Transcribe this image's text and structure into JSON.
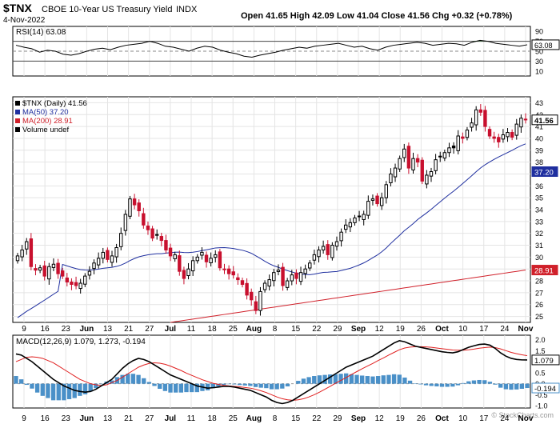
{
  "header": {
    "symbol": "$TNX",
    "name": "CBOE 10-Year US Treasury Yield",
    "exchange": "INDX",
    "date": "4-Nov-2022",
    "ohlc": "Open 41.65  High 42.09  Low 41.04  Close 41.56  Chg +0.32 (+0.78%)",
    "quote": {
      "open": "41.65",
      "high": "42.09",
      "low": "41.04",
      "close": "41.56",
      "chg": "+0.32 (+0.78%)"
    },
    "copyright": "© StockCharts.com"
  },
  "colors": {
    "up": "#ffffff",
    "down": "#000000",
    "red_candle": "#c8102e",
    "ma50": "#1f2f9f",
    "ma200": "#d0202a",
    "rsi": "#000000",
    "rsi_fill": "#3c7a3c",
    "macd": "#000000",
    "signal": "#e02020",
    "histogram": "#4a90c8",
    "price_tag": "#1f2f9f",
    "ma200_tag": "#d0202a"
  },
  "chart_data": [
    {
      "type": "line",
      "panel": "rsi",
      "title": "RSI(14) 63.08",
      "yticks": [
        90,
        70,
        50,
        30,
        10
      ],
      "ylim": [
        0,
        100
      ],
      "levels": [
        70,
        50,
        30
      ],
      "last_value": "63.08",
      "values": [
        62,
        58,
        55,
        48,
        52,
        50,
        44,
        42,
        45,
        50,
        54,
        56,
        53,
        58,
        62,
        64,
        66,
        70,
        66,
        60,
        58,
        54,
        50,
        56,
        60,
        58,
        52,
        48,
        45,
        40,
        38,
        42,
        45,
        48,
        52,
        55,
        58,
        56,
        60,
        62,
        64,
        66,
        62,
        58,
        60,
        55,
        52,
        58,
        62,
        64,
        66,
        68,
        66,
        62,
        64,
        66,
        65,
        62,
        68,
        72,
        70,
        66,
        64,
        62,
        60,
        63
      ]
    },
    {
      "type": "candlestick",
      "panel": "price",
      "title": "$TNX (Daily) 41.56",
      "legend": [
        "$TNX (Daily) 41.56",
        "MA(50) 37.20",
        "MA(200) 28.91",
        "Volume undef"
      ],
      "ylim": [
        24.5,
        43.5
      ],
      "yticks": [
        43,
        42,
        41,
        40,
        39,
        38,
        37,
        36,
        35,
        34,
        33,
        32,
        31,
        30,
        29,
        28,
        27,
        26,
        25
      ],
      "xticks": [
        "9",
        "16",
        "23",
        "Jun",
        "13",
        "21",
        "27",
        "Jul",
        "11",
        "18",
        "25",
        "Aug",
        "8",
        "15",
        "22",
        "29",
        "Sep",
        "12",
        "19",
        "26",
        "Oct",
        "10",
        "17",
        "24",
        "Nov"
      ],
      "price_tags": {
        "close": "41.56",
        "ma50": "37.20",
        "ma200": "28.91"
      },
      "close": [
        30.1,
        30.6,
        31.3,
        29.2,
        28.9,
        29.1,
        28.4,
        29.2,
        29.4,
        28.6,
        28.4,
        27.9,
        27.7,
        27.6,
        27.8,
        28.4,
        28.8,
        29.5,
        29.9,
        30.4,
        29.8,
        30.1,
        30.8,
        32.0,
        33.6,
        34.9,
        34.4,
        33.9,
        32.7,
        32.3,
        31.6,
        31.9,
        31.4,
        30.6,
        30.1,
        30.2,
        28.8,
        28.2,
        29.0,
        29.7,
        30.0,
        30.4,
        29.6,
        29.9,
        30.2,
        29.1,
        29.0,
        28.6,
        28.5,
        28.1,
        27.7,
        26.8,
        26.4,
        25.5,
        27.1,
        27.8,
        28.1,
        28.7,
        28.9,
        27.6,
        28.0,
        28.5,
        28.2,
        28.7,
        29.0,
        29.5,
        30.2,
        30.6,
        30.9,
        30.2,
        31.0,
        31.3,
        32.1,
        32.7,
        32.9,
        33.3,
        33.4,
        33.6,
        34.7,
        34.9,
        34.5,
        35.0,
        36.1,
        37.0,
        37.5,
        38.3,
        39.1,
        37.5,
        38.3,
        38.0,
        36.4,
        36.9,
        37.2,
        38.2,
        38.5,
        38.8,
        39.2,
        39.2,
        40.2,
        40.0,
        40.7,
        41.3,
        42.4,
        42.2,
        41.0,
        40.2,
        40.0,
        39.7,
        40.3,
        40.5,
        40.1,
        41.2,
        41.7,
        41.56
      ]
    },
    {
      "type": "line",
      "panel": "macd",
      "title": "MACD(12,26,9) 1.079, 1.273, -0.194",
      "ylim": [
        -1.1,
        2.2
      ],
      "yticks": [
        2.0,
        1.5,
        1.0,
        0.5,
        0.0,
        -0.5,
        -1.0
      ],
      "xticks": [
        "9",
        "16",
        "23",
        "Jun",
        "13",
        "21",
        "27",
        "Jul",
        "11",
        "18",
        "25",
        "Aug",
        "8",
        "15",
        "22",
        "29",
        "Sep",
        "12",
        "19",
        "26",
        "Oct",
        "10",
        "17",
        "24",
        "Nov"
      ],
      "last_values": {
        "macd": "1.079",
        "signal": "1.273",
        "histogram": "-0.194"
      },
      "macd": [
        1.35,
        1.3,
        1.15,
        1.0,
        0.8,
        0.6,
        0.4,
        0.2,
        0.05,
        -0.1,
        -0.2,
        -0.3,
        -0.35,
        -0.38,
        -0.35,
        -0.25,
        -0.1,
        0.05,
        0.2,
        0.45,
        0.7,
        0.9,
        1.05,
        1.15,
        1.1,
        1.0,
        0.85,
        0.7,
        0.55,
        0.4,
        0.3,
        0.2,
        0.1,
        0.0,
        -0.1,
        -0.15,
        -0.2,
        -0.18,
        -0.15,
        -0.12,
        -0.12,
        -0.15,
        -0.2,
        -0.25,
        -0.3,
        -0.4,
        -0.5,
        -0.6,
        -0.75,
        -0.85,
        -0.9,
        -0.85,
        -0.75,
        -0.6,
        -0.45,
        -0.3,
        -0.15,
        0.0,
        0.15,
        0.3,
        0.45,
        0.6,
        0.75,
        0.85,
        0.95,
        1.05,
        1.15,
        1.25,
        1.4,
        1.55,
        1.7,
        1.85,
        1.95,
        1.9,
        1.8,
        1.7,
        1.65,
        1.6,
        1.55,
        1.5,
        1.45,
        1.42,
        1.4,
        1.45,
        1.55,
        1.65,
        1.72,
        1.78,
        1.8,
        1.75,
        1.6,
        1.4,
        1.25,
        1.15,
        1.1,
        1.08,
        1.079
      ],
      "signal": [
        1.0,
        1.1,
        1.2,
        1.22,
        1.2,
        1.15,
        1.05,
        0.95,
        0.8,
        0.65,
        0.5,
        0.35,
        0.2,
        0.1,
        0.0,
        -0.05,
        -0.08,
        -0.05,
        0.05,
        0.15,
        0.3,
        0.45,
        0.6,
        0.75,
        0.85,
        0.92,
        0.95,
        0.93,
        0.88,
        0.8,
        0.7,
        0.6,
        0.48,
        0.38,
        0.28,
        0.18,
        0.1,
        0.02,
        -0.03,
        -0.07,
        -0.1,
        -0.12,
        -0.14,
        -0.17,
        -0.2,
        -0.25,
        -0.32,
        -0.4,
        -0.5,
        -0.6,
        -0.68,
        -0.73,
        -0.75,
        -0.73,
        -0.68,
        -0.6,
        -0.5,
        -0.38,
        -0.25,
        -0.12,
        0.02,
        0.15,
        0.28,
        0.42,
        0.55,
        0.68,
        0.8,
        0.92,
        1.05,
        1.17,
        1.3,
        1.42,
        1.54,
        1.62,
        1.66,
        1.68,
        1.68,
        1.67,
        1.65,
        1.62,
        1.59,
        1.56,
        1.53,
        1.52,
        1.52,
        1.54,
        1.57,
        1.61,
        1.64,
        1.66,
        1.64,
        1.58,
        1.5,
        1.42,
        1.36,
        1.31,
        1.273
      ]
    }
  ]
}
